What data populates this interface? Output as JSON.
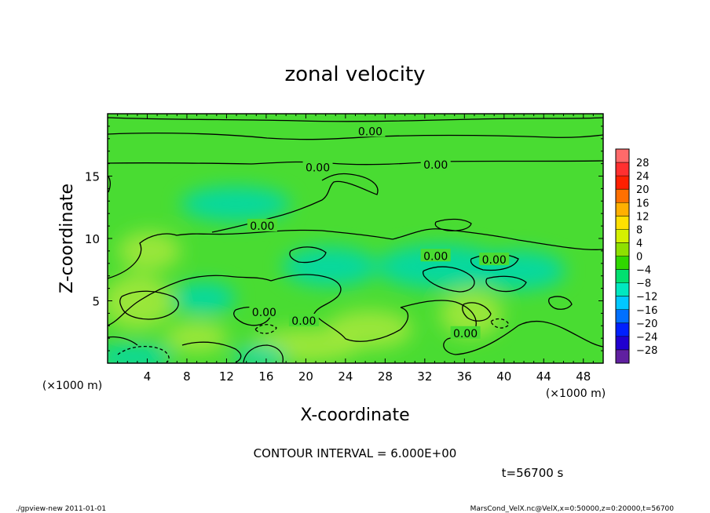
{
  "chart_data": {
    "type": "heatmap",
    "title": "zonal velocity",
    "xlabel": "X-coordinate",
    "ylabel": "Z-coordinate",
    "x_unit": "(×1000 m)",
    "y_unit": "(×1000 m)",
    "xlim": [
      0,
      50
    ],
    "ylim": [
      0,
      20
    ],
    "x_ticks": [
      4,
      8,
      12,
      16,
      20,
      24,
      28,
      32,
      36,
      40,
      44,
      48
    ],
    "y_ticks": [
      5,
      10,
      15
    ],
    "contour_interval_text": "CONTOUR INTERVAL = 6.000E+00",
    "time_text": "t=56700 s",
    "contour_labels": [
      {
        "text": "0.00",
        "x": 26.5,
        "z": 18.6
      },
      {
        "text": "0.00",
        "x": 21.2,
        "z": 15.7
      },
      {
        "text": "0.00",
        "x": 33.1,
        "z": 15.9
      },
      {
        "text": "0.00",
        "x": 15.6,
        "z": 11.0
      },
      {
        "text": "0.00",
        "x": 33.1,
        "z": 8.6
      },
      {
        "text": "0.00",
        "x": 39.0,
        "z": 8.3
      },
      {
        "text": "0.00",
        "x": 15.8,
        "z": 4.1
      },
      {
        "text": "0.00",
        "x": 19.8,
        "z": 3.4
      },
      {
        "text": "0.00",
        "x": 36.1,
        "z": 2.4
      }
    ],
    "colorbar": {
      "levels": [
        28,
        24,
        20,
        16,
        12,
        8,
        4,
        0,
        -4,
        -8,
        -12,
        -16,
        -20,
        -24,
        -28
      ],
      "colors": [
        "#ff6a6a",
        "#ff3030",
        "#ff2000",
        "#ff7000",
        "#ffb000",
        "#ffe000",
        "#d4f000",
        "#8ee000",
        "#30d800",
        "#00e070",
        "#00e8c0",
        "#00c8ff",
        "#0070ff",
        "#0020ff",
        "#2000d0",
        "#6020a0"
      ]
    },
    "field_colors": {
      "base": "#49dc32",
      "positive": "#a2e83c",
      "negative": "#00d8a8"
    }
  },
  "footer": {
    "left": "./gpview-new  2011-01-01",
    "right": "MarsCond_VelX.nc@VelX,x=0:50000,z=0:20000,t=56700"
  }
}
